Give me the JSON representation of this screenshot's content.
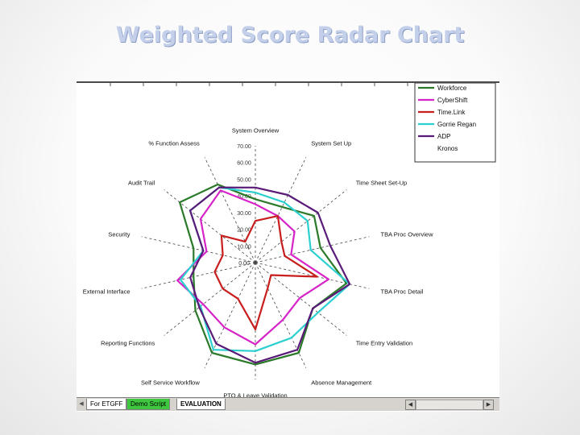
{
  "slide": {
    "title": "Weighted Score Radar Chart"
  },
  "chart_data": {
    "type": "radar",
    "title": "",
    "axes": [
      "System Overview",
      "System   Set Up",
      "Time Sheet Set-Up",
      "TBA Proc Overview",
      "TBA Proc Detail",
      "Time Entry Validation",
      "Absence Management",
      "PTO & Leave Validation",
      "Self Service Workflow",
      "Reporting Functions",
      "External Interface",
      "Security",
      "Audit Trail",
      "% Function Assess"
    ],
    "scale_labels": [
      "0.00",
      "10.00",
      "20.00",
      "30.00",
      "40.00",
      "50.00",
      "60.00",
      "70.00"
    ],
    "rmax": 70,
    "series": [
      {
        "name": "Workforce",
        "color": "#2a7a2a",
        "values": [
          38,
          37,
          45,
          40,
          56,
          44,
          60,
          61,
          60,
          46,
          38,
          38,
          58,
          52
        ]
      },
      {
        "name": "CyberShift",
        "color": "#d624c8",
        "values": [
          35,
          31,
          30,
          22,
          45,
          34,
          38,
          49,
          43,
          40,
          48,
          30,
          42,
          48
        ]
      },
      {
        "name": "Time.Link",
        "color": "#c81e1e",
        "values": [
          25,
          31,
          20,
          18,
          38,
          12,
          17,
          40,
          24,
          25,
          25,
          20,
          26,
          14
        ]
      },
      {
        "name": "Gorrie Regan",
        "color": "#2cd0d0",
        "values": [
          42,
          40,
          40,
          34,
          58,
          48,
          50,
          53,
          58,
          42,
          46,
          32,
          50,
          50
        ]
      },
      {
        "name": "ADP",
        "color": "#5a1a78",
        "values": [
          45,
          45,
          48,
          46,
          58,
          44,
          58,
          60,
          54,
          43,
          40,
          32,
          50,
          50
        ]
      },
      {
        "name": "Kronos",
        "color": "#000000",
        "values": []
      }
    ],
    "legend_position": "top-right"
  },
  "sheet_tabs": [
    {
      "label": "For ETGFF"
    },
    {
      "label": "Demo  Script"
    },
    {
      "label": "EVALUATION"
    }
  ]
}
